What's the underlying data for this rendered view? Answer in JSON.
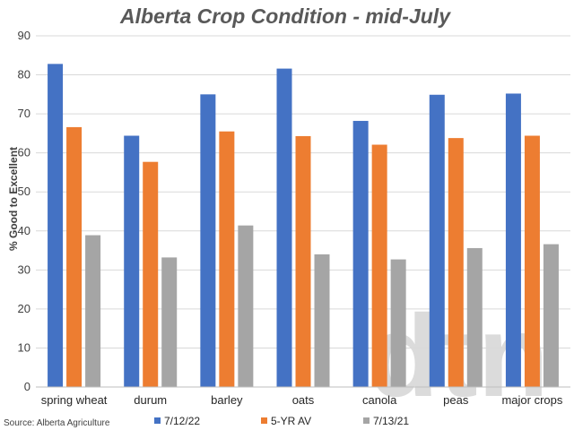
{
  "chart_data": {
    "type": "bar",
    "title": "Alberta Crop Condition - mid-July",
    "ylabel": "% Good to Excellent",
    "xlabel": "",
    "ylim": [
      0,
      90
    ],
    "yticks": [
      0,
      10,
      20,
      30,
      40,
      50,
      60,
      70,
      80,
      90
    ],
    "grid": true,
    "legend_position": "bottom",
    "categories": [
      "spring wheat",
      "durum",
      "barley",
      "oats",
      "canola",
      "peas",
      "major crops"
    ],
    "series": [
      {
        "name": "7/12/22",
        "color": "#4472C4",
        "values": [
          82.8,
          64.4,
          75.0,
          81.6,
          68.2,
          74.9,
          75.2
        ]
      },
      {
        "name": "5-YR AV",
        "color": "#ED7D31",
        "values": [
          66.6,
          57.7,
          65.5,
          64.3,
          62.1,
          63.8,
          64.4
        ]
      },
      {
        "name": "7/13/21",
        "color": "#A5A5A5",
        "values": [
          38.9,
          33.2,
          41.4,
          34.0,
          32.7,
          35.6,
          36.6
        ]
      }
    ]
  },
  "source": "Source: Alberta Agriculture",
  "watermark": "dtn"
}
